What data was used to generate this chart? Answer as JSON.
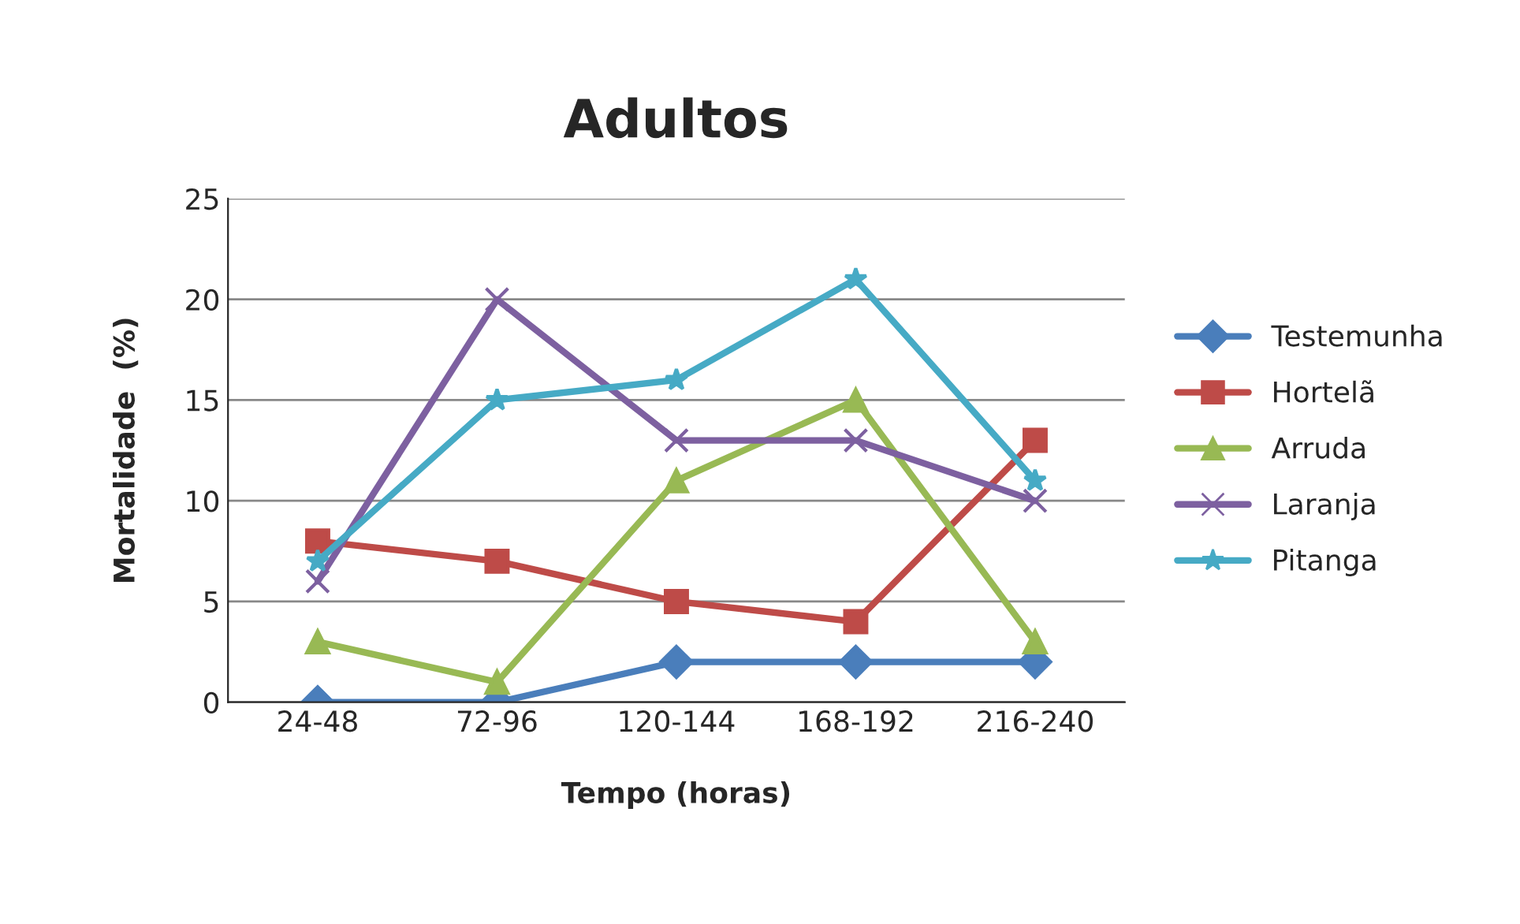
{
  "chart_data": {
    "type": "line",
    "title": "Adultos",
    "xlabel": "Tempo (horas)",
    "ylabel": "Mortalidade  (%)",
    "categories": [
      "24-48",
      "72-96",
      "120-144",
      "168-192",
      "216-240"
    ],
    "series": [
      {
        "name": "Testemunha",
        "color": "#4a7ebb",
        "marker": "diamond",
        "values": [
          0,
          0,
          2,
          2,
          2
        ]
      },
      {
        "name": "Hortelã",
        "color": "#be4b48",
        "marker": "square",
        "values": [
          8,
          7,
          5,
          4,
          13
        ]
      },
      {
        "name": "Arruda",
        "color": "#98b954",
        "marker": "triangle",
        "values": [
          3,
          1,
          11,
          15,
          3
        ]
      },
      {
        "name": "Laranja",
        "color": "#7d60a0",
        "marker": "cross",
        "values": [
          6,
          20,
          13,
          13,
          10
        ]
      },
      {
        "name": "Pitanga",
        "color": "#46aac5",
        "marker": "star",
        "values": [
          7,
          15,
          16,
          21,
          11
        ]
      }
    ],
    "ylim": [
      0,
      25
    ],
    "yticks": [
      0,
      5,
      10,
      15,
      20,
      25
    ],
    "grid": "y",
    "legend": "right",
    "line_style": "solid"
  }
}
